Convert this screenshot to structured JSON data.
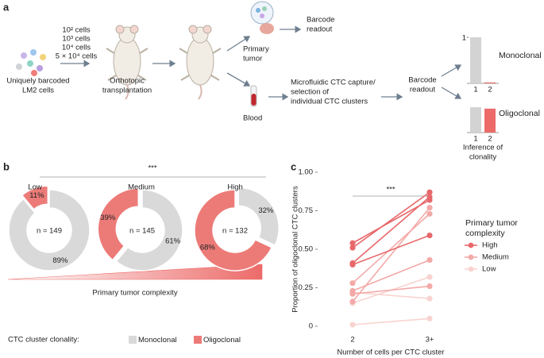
{
  "panel_labels": [
    "a",
    "b",
    "c"
  ],
  "schematic": {
    "cell_counts": [
      "10² cells",
      "10³ cells",
      "10⁴ cells",
      "5 × 10⁴ cells"
    ],
    "cells_label": [
      "Uniquely barcoded",
      "LM2 cells"
    ],
    "transplant_label": [
      "Orthotopic",
      "transplantation"
    ],
    "primary_tumor": [
      "Primary",
      "tumor"
    ],
    "readout_1": [
      "Barcode",
      "readout"
    ],
    "blood": "Blood",
    "capture": [
      "Microfluidic CTC capture/",
      "selection of",
      "individual CTC clusters"
    ],
    "readout_2": [
      "Barcode",
      "readout"
    ],
    "inference": [
      "Inference of",
      "clonality"
    ]
  },
  "panel_b": {
    "significance": "***",
    "gradient_label": "Primary tumor complexity",
    "legend_title": "CTC cluster clonality:",
    "legend": [
      "Monoclonal",
      "Oligoclonal"
    ]
  },
  "chart_data": [
    {
      "type": "minibar",
      "title": "Monoclonal",
      "categories": [
        "1",
        "2"
      ],
      "values": [
        1,
        0.02
      ],
      "colors": [
        "#d3d3d3",
        "#ec6b69"
      ],
      "ylim": [
        0,
        1
      ],
      "yticks": [
        1
      ]
    },
    {
      "type": "minibar",
      "title": "Oligoclonal",
      "categories": [
        "1",
        "2"
      ],
      "values": [
        0.55,
        0.52
      ],
      "colors": [
        "#d3d3d3",
        "#ec6b69"
      ],
      "ylim": [
        0,
        1
      ],
      "yticks": []
    },
    {
      "type": "pie",
      "title": "Low",
      "n_label": "n = 149",
      "values": [
        89,
        11
      ],
      "value_labels": [
        "89%",
        "11%"
      ],
      "colors": [
        "#d9d9d9",
        "#ec7b78"
      ],
      "explode": [
        false,
        true
      ]
    },
    {
      "type": "pie",
      "title": "Medium",
      "n_label": "n = 145",
      "values": [
        61,
        39
      ],
      "value_labels": [
        "61%",
        "39%"
      ],
      "colors": [
        "#d9d9d9",
        "#ec7b78"
      ],
      "explode": [
        false,
        true
      ]
    },
    {
      "type": "pie",
      "title": "High",
      "n_label": "n = 132",
      "values": [
        32,
        68
      ],
      "value_labels": [
        "32%",
        "68%"
      ],
      "colors": [
        "#d9d9d9",
        "#ec7b78"
      ],
      "explode": [
        true,
        false
      ]
    },
    {
      "type": "line",
      "categories": [
        "2",
        "3+"
      ],
      "xlabel": "Number of cells per CTC cluster",
      "ylabel": "Proportion of oligoclonal CTC clusters",
      "significance": "***",
      "ylim": [
        0,
        1
      ],
      "yticks": [
        0,
        0.25,
        {
          "value": 0.5,
          "label": "0.50"
        },
        0.75,
        {
          "value": 1,
          "label": "1.00"
        }
      ],
      "legend_title": [
        "Primary tumor",
        "complexity"
      ],
      "series": [
        {
          "name": "High",
          "color": "#e8686b",
          "values": [
            [
              0.54,
              0.82
            ],
            [
              0.51,
              0.87
            ],
            [
              0.41,
              0.84
            ],
            [
              0.4,
              0.59
            ]
          ]
        },
        {
          "name": "Medium",
          "color": "#f3a9a7",
          "values": [
            [
              0.28,
              0.73
            ],
            [
              0.23,
              0.43
            ],
            [
              0.21,
              0.26
            ],
            [
              0.16,
              0.77
            ]
          ]
        },
        {
          "name": "Low",
          "color": "#f8d3d0",
          "values": [
            [
              0.15,
              0.32
            ],
            [
              0.01,
              0.05
            ],
            [
              0.22,
              0.18
            ]
          ]
        }
      ]
    }
  ]
}
